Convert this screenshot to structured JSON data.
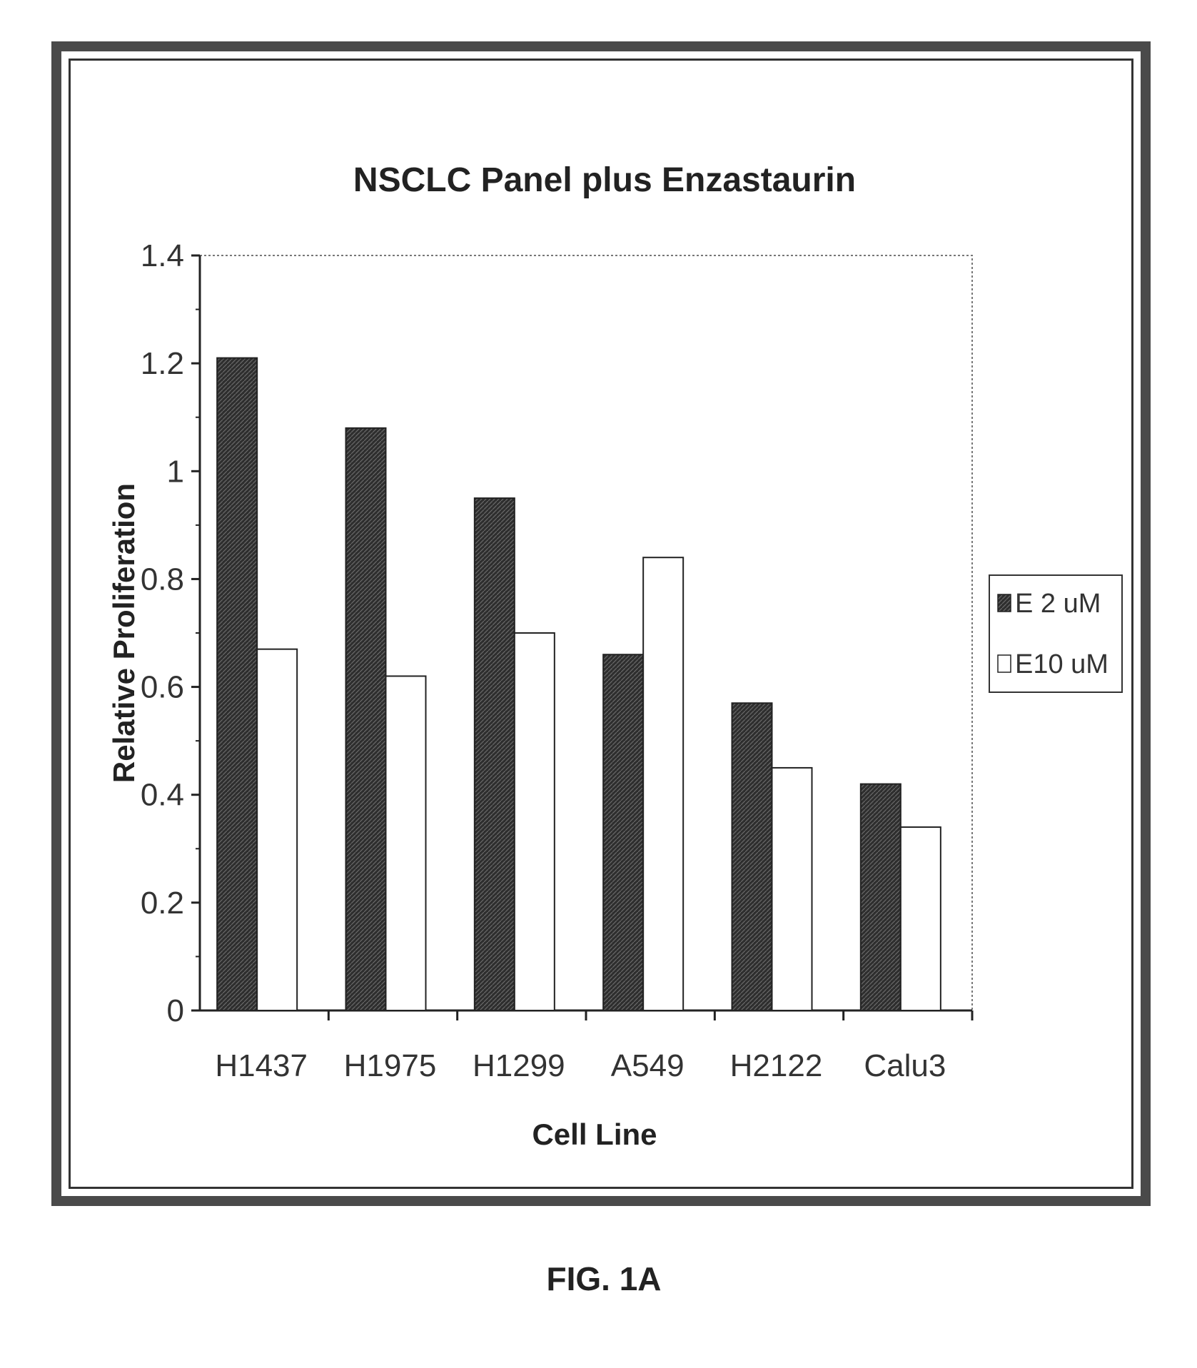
{
  "figure_caption": "FIG. 1A",
  "chart_data": {
    "type": "bar",
    "title": "NSCLC Panel plus Enzastaurin",
    "xlabel": "Cell Line",
    "ylabel": "Relative Proliferation",
    "ylim": [
      0,
      1.4
    ],
    "yticks": [
      "0",
      "0.2",
      "0.4",
      "0.6",
      "0.8",
      "1",
      "1.2",
      "1.4"
    ],
    "categories": [
      "H1437",
      "H1975",
      "H1299",
      "A549",
      "H2122",
      "Calu3"
    ],
    "series": [
      {
        "name": "E 2 uM",
        "values": [
          1.21,
          1.08,
          0.95,
          0.66,
          0.57,
          0.42
        ],
        "color": "#3a3a3a"
      },
      {
        "name": "E10 uM",
        "values": [
          0.67,
          0.62,
          0.7,
          0.84,
          0.45,
          0.34
        ],
        "color": "#ffffff"
      }
    ],
    "grid": false,
    "legend_position": "right"
  }
}
